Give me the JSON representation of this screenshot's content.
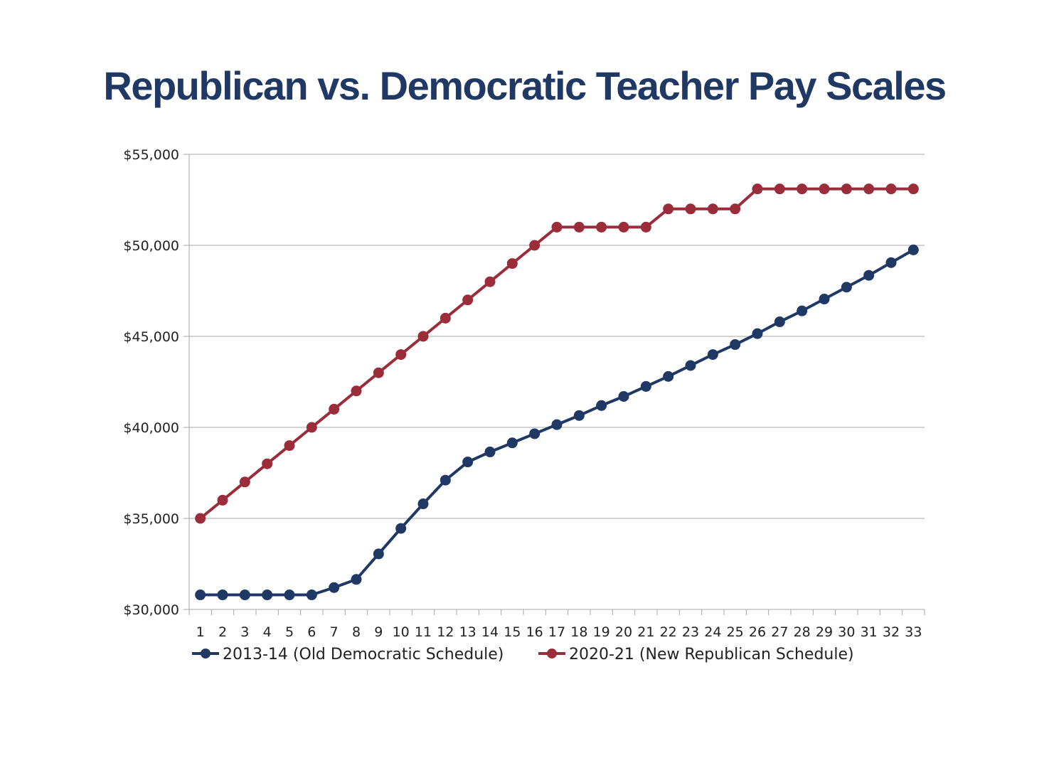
{
  "chart_data": {
    "type": "line",
    "title": "Republican vs. Democratic Teacher Pay Scales",
    "xlabel": "",
    "ylabel": "",
    "x": [
      1,
      2,
      3,
      4,
      5,
      6,
      7,
      8,
      9,
      10,
      11,
      12,
      13,
      14,
      15,
      16,
      17,
      18,
      19,
      20,
      21,
      22,
      23,
      24,
      25,
      26,
      27,
      28,
      29,
      30,
      31,
      32,
      33
    ],
    "ylim": [
      30000,
      55000
    ],
    "yticks": [
      30000,
      35000,
      40000,
      45000,
      50000,
      55000
    ],
    "ytick_labels": [
      "$30,000",
      "$35,000",
      "$40,000",
      "$45,000",
      "$50,000",
      "$55,000"
    ],
    "grid": true,
    "legend_position": "bottom",
    "series": [
      {
        "name": "2013-14 (Old Democratic Schedule)",
        "color": "#1f3864",
        "values": [
          30800,
          30800,
          30800,
          30800,
          30800,
          30800,
          31200,
          31650,
          33050,
          34450,
          35800,
          37100,
          38100,
          38650,
          39150,
          39650,
          40150,
          40650,
          41200,
          41700,
          42250,
          42800,
          43400,
          44000,
          44550,
          45150,
          45800,
          46400,
          47050,
          47700,
          48350,
          49050,
          49750
        ]
      },
      {
        "name": "2020-21 (New Republican Schedule)",
        "color": "#9b2d3b",
        "values": [
          35000,
          36000,
          37000,
          38000,
          39000,
          40000,
          41000,
          42000,
          43000,
          44000,
          45000,
          46000,
          47000,
          48000,
          49000,
          50000,
          51000,
          51000,
          51000,
          51000,
          51000,
          52000,
          52000,
          52000,
          52000,
          53100,
          53100,
          53100,
          53100,
          53100,
          53100,
          53100,
          53100
        ]
      }
    ]
  }
}
